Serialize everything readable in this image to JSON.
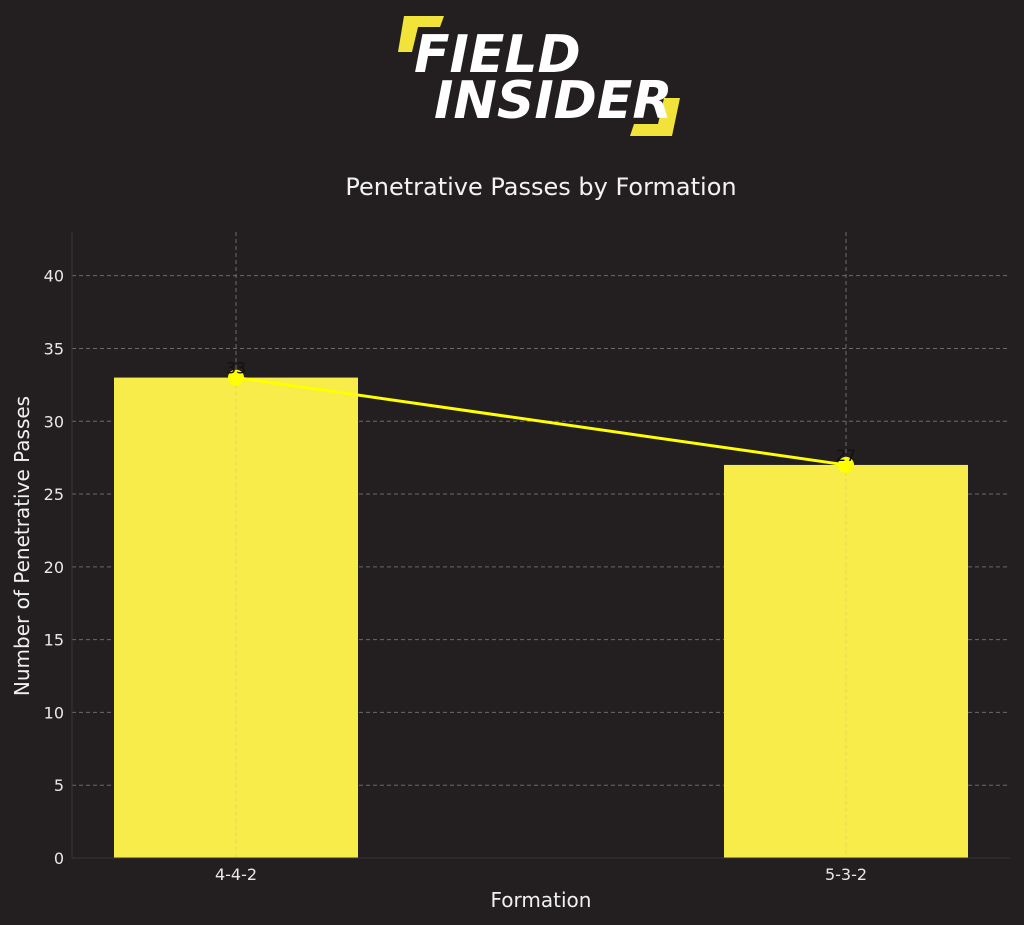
{
  "logo": {
    "line1": "FIELD",
    "line2": "INSIDER",
    "accent_color": "#f2e33a"
  },
  "colors": {
    "background": "#231f20",
    "bar": "#f7ec4a",
    "line": "#ffff00",
    "grid": "#6a6a6a"
  },
  "chart_data": {
    "type": "bar",
    "title": "Penetrative Passes by Formation",
    "xlabel": "Formation",
    "ylabel": "Number of Penetrative Passes",
    "categories": [
      "4-4-2",
      "5-3-2"
    ],
    "values": [
      33,
      27
    ],
    "data_labels": [
      "33",
      "27"
    ],
    "overlay_line": true,
    "ylim": [
      0,
      43
    ],
    "yticks": [
      0,
      5,
      10,
      15,
      20,
      25,
      30,
      35,
      40
    ],
    "grid": true
  }
}
